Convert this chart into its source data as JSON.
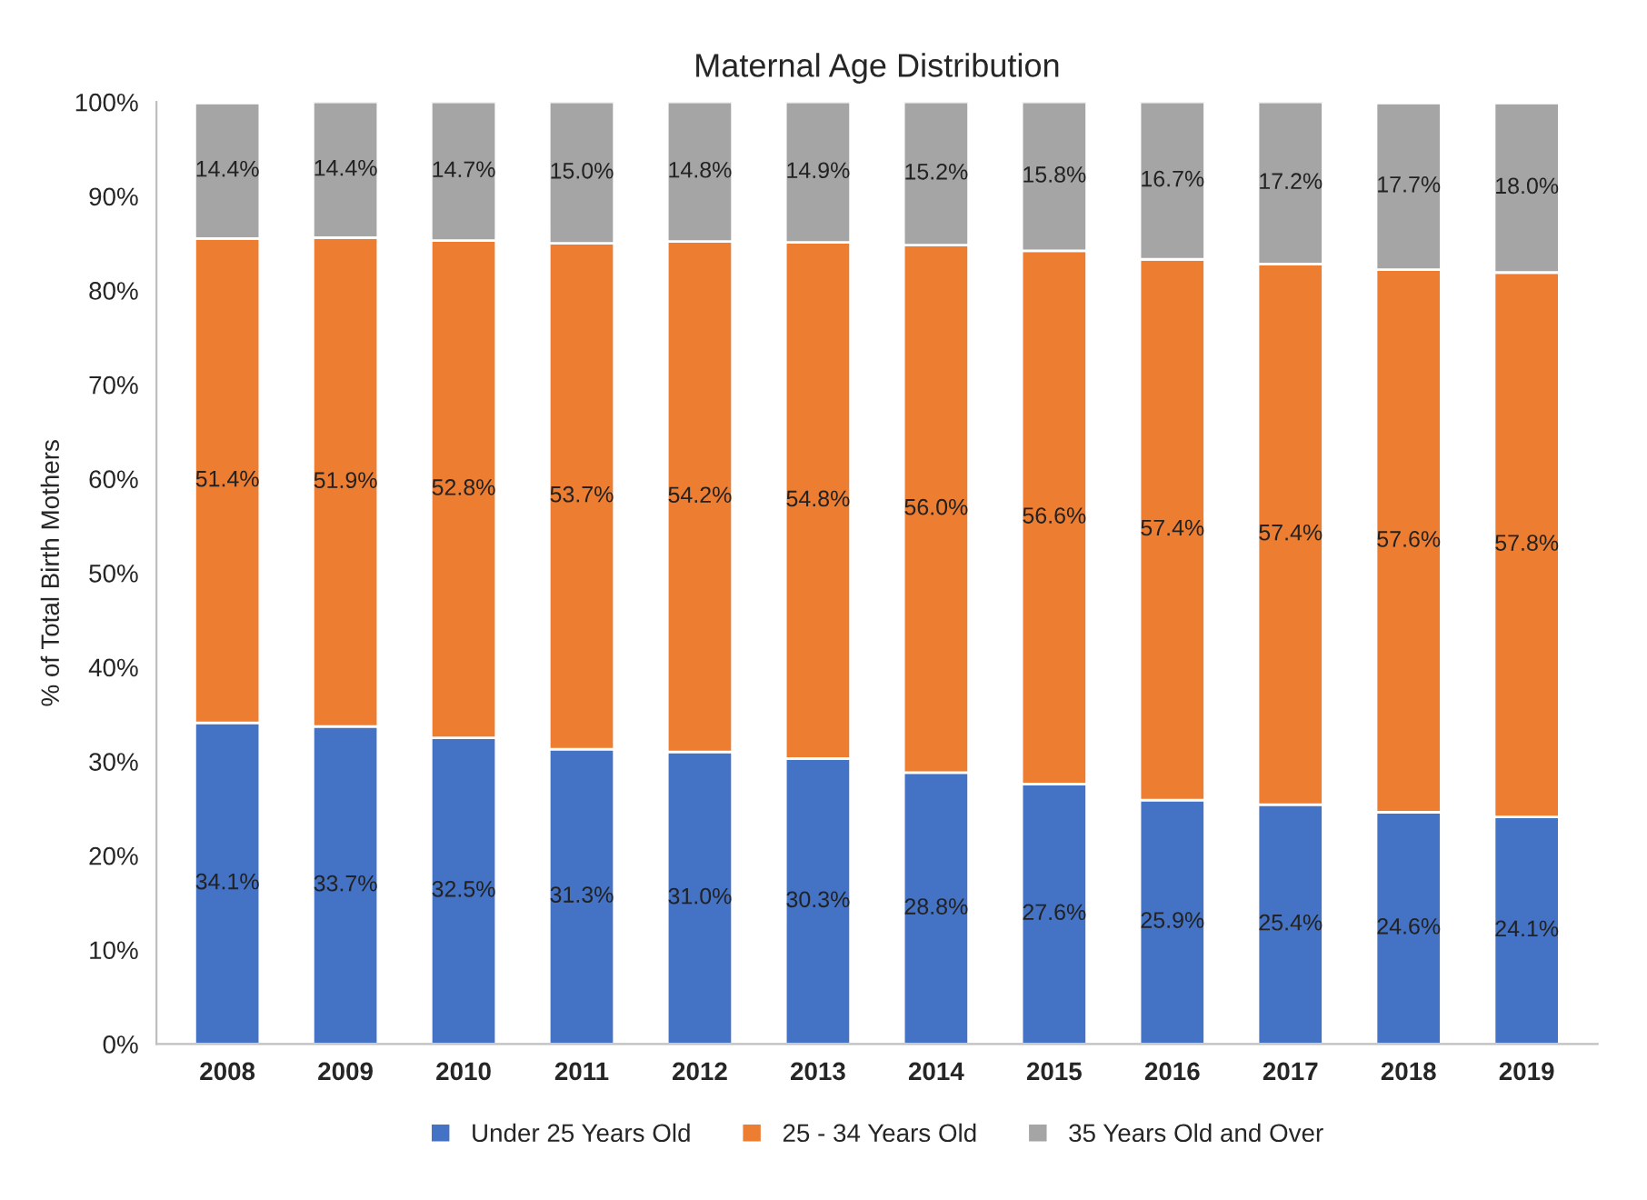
{
  "chart_data": {
    "type": "bar",
    "title": "Maternal Age Distribution",
    "ylabel": "% of Total Birth Mothers",
    "categories": [
      "2008",
      "2009",
      "2010",
      "2011",
      "2012",
      "2013",
      "2014",
      "2015",
      "2016",
      "2017",
      "2018",
      "2019"
    ],
    "stacked": true,
    "series": [
      {
        "name": "Under 25 Years Old",
        "color": "#4472c4",
        "values": [
          34.1,
          33.7,
          32.5,
          31.3,
          31.0,
          30.3,
          28.8,
          27.6,
          25.9,
          25.4,
          24.6,
          24.1
        ],
        "value_labels": [
          "34.1%",
          "33.7%",
          "32.5%",
          "31.3%",
          "31.0%",
          "30.3%",
          "28.8%",
          "27.6%",
          "25.9%",
          "25.4%",
          "24.6%",
          "24.1%"
        ]
      },
      {
        "name": "25 - 34 Years Old",
        "color": "#ed7d31",
        "values": [
          51.4,
          51.9,
          52.8,
          53.7,
          54.2,
          54.8,
          56.0,
          56.6,
          57.4,
          57.4,
          57.6,
          57.8
        ],
        "value_labels": [
          "51.4%",
          "51.9%",
          "52.8%",
          "53.7%",
          "54.2%",
          "54.8%",
          "56.0%",
          "56.6%",
          "57.4%",
          "57.4%",
          "57.6%",
          "57.8%"
        ]
      },
      {
        "name": "35 Years Old and Over",
        "color": "#a5a5a5",
        "values": [
          14.4,
          14.4,
          14.7,
          15.0,
          14.8,
          14.9,
          15.2,
          15.8,
          16.7,
          17.2,
          17.7,
          18.0
        ],
        "value_labels": [
          "14.4%",
          "14.4%",
          "14.7%",
          "15.0%",
          "14.8%",
          "14.9%",
          "15.2%",
          "15.8%",
          "16.7%",
          "17.2%",
          "17.7%",
          "18.0%"
        ]
      }
    ],
    "ylim": [
      0,
      100
    ],
    "yticks": [
      {
        "value": 0,
        "label": "0%"
      },
      {
        "value": 10,
        "label": "10%"
      },
      {
        "value": 20,
        "label": "20%"
      },
      {
        "value": 30,
        "label": "30%"
      },
      {
        "value": 40,
        "label": "40%"
      },
      {
        "value": 50,
        "label": "50%"
      },
      {
        "value": 60,
        "label": "60%"
      },
      {
        "value": 70,
        "label": "70%"
      },
      {
        "value": 80,
        "label": "80%"
      },
      {
        "value": 90,
        "label": "90%"
      },
      {
        "value": 100,
        "label": "100%"
      }
    ],
    "grid": false,
    "legend": "bottom"
  }
}
